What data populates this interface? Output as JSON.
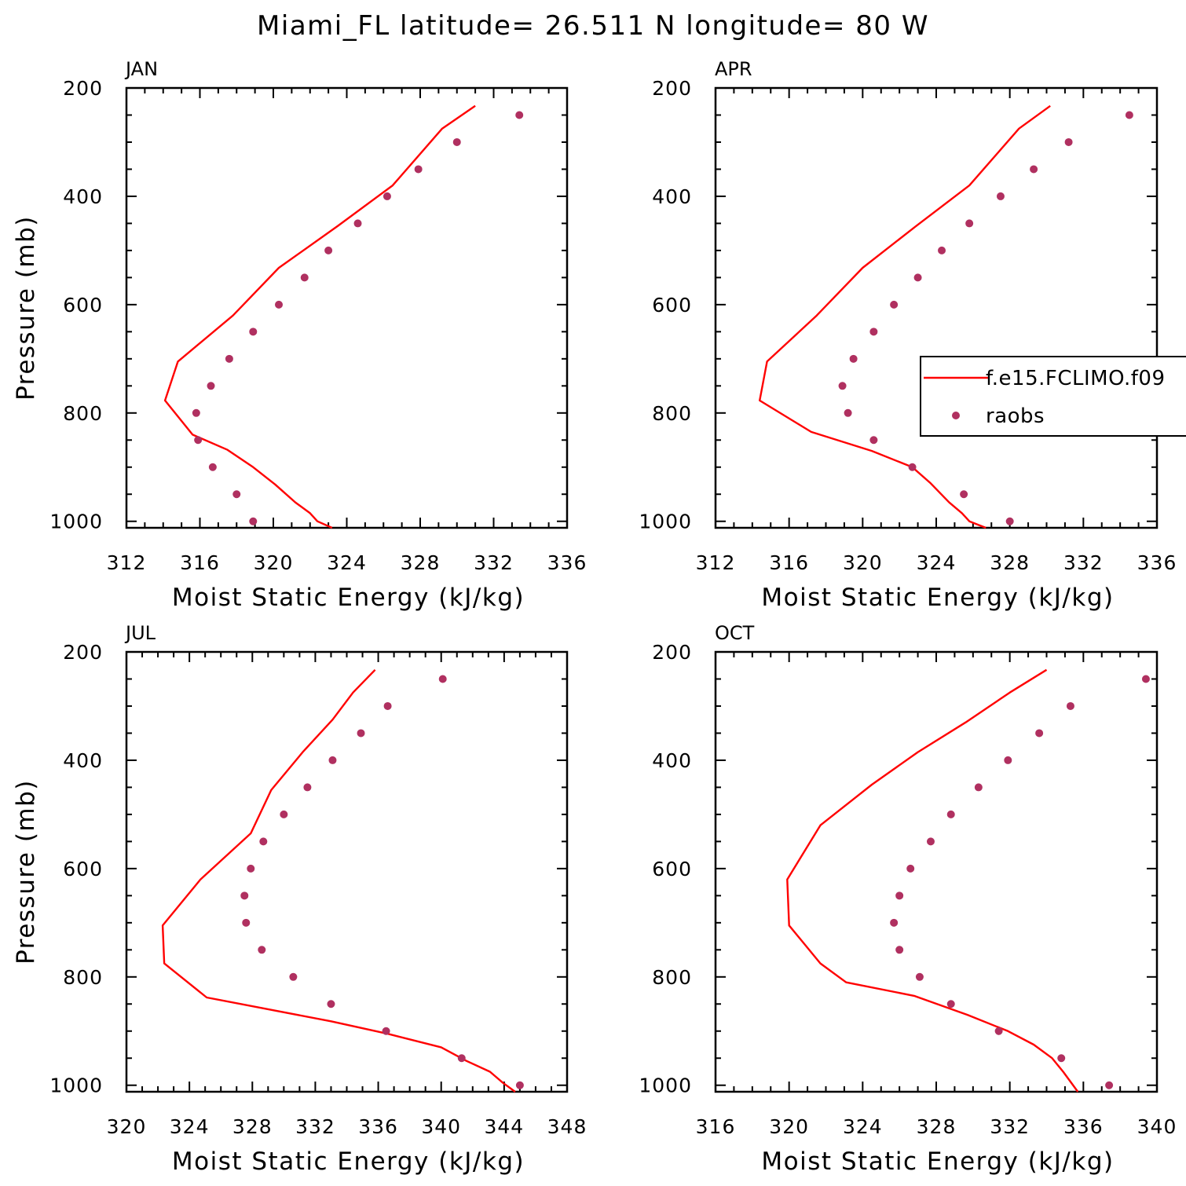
{
  "figure": {
    "title": "Miami_FL  latitude= 26.511 N longitude= 80 W"
  },
  "colors": {
    "model": "#ff0000",
    "raobs": "#b03060",
    "axes": "#000000"
  },
  "legend": {
    "placement": "right, over APR panel",
    "entries": [
      {
        "label": "f.e15.FCLIMO.f09",
        "style": "line"
      },
      {
        "label": "raobs",
        "style": "marker"
      }
    ]
  },
  "chart_data": [
    {
      "type": "line",
      "panel_title": "JAN",
      "xlabel": "Moist Static Energy (kJ/kg)",
      "ylabel": "Pressure (mb)",
      "xlim": [
        312,
        336
      ],
      "ylim": [
        1012,
        200
      ],
      "y_inverted": true,
      "xticks": [
        312,
        316,
        320,
        324,
        328,
        332,
        336
      ],
      "yticks": [
        200,
        400,
        600,
        800,
        1000
      ],
      "grid": false,
      "series": [
        {
          "name": "f.e15.FCLIMO.f09",
          "style": "line",
          "x": [
            331.0,
            329.2,
            326.5,
            323.5,
            320.3,
            317.8,
            314.8,
            314.1,
            315.6,
            317.5,
            318.9,
            320.1,
            321.2,
            322.0,
            322.4,
            323.2
          ],
          "y": [
            233,
            275,
            380,
            455,
            532,
            620,
            705,
            777,
            840,
            868,
            900,
            932,
            965,
            985,
            1000,
            1012
          ]
        },
        {
          "name": "raobs",
          "style": "marker",
          "x": [
            333.4,
            330.0,
            327.9,
            326.2,
            324.6,
            323.0,
            321.7,
            320.3,
            318.9,
            317.6,
            316.6,
            315.8,
            315.9,
            316.7,
            318.0,
            318.9
          ],
          "y": [
            250,
            300,
            350,
            400,
            450,
            500,
            550,
            600,
            650,
            700,
            750,
            800,
            850,
            900,
            950,
            1000
          ]
        }
      ]
    },
    {
      "type": "line",
      "panel_title": "APR",
      "xlabel": "Moist Static Energy (kJ/kg)",
      "ylabel": "",
      "xlim": [
        312,
        336
      ],
      "ylim": [
        1012,
        200
      ],
      "y_inverted": true,
      "xticks": [
        312,
        316,
        320,
        324,
        328,
        332,
        336
      ],
      "yticks": [
        200,
        400,
        600,
        800,
        1000
      ],
      "grid": false,
      "series": [
        {
          "name": "f.e15.FCLIMO.f09",
          "style": "line",
          "x": [
            330.2,
            328.5,
            325.8,
            322.9,
            320.0,
            317.5,
            314.8,
            314.4,
            317.2,
            320.5,
            322.7,
            323.7,
            324.7,
            325.4,
            325.8,
            326.7
          ],
          "y": [
            233,
            275,
            380,
            455,
            532,
            620,
            705,
            777,
            835,
            870,
            900,
            930,
            965,
            985,
            1000,
            1012
          ]
        },
        {
          "name": "raobs",
          "style": "marker",
          "x": [
            334.5,
            331.2,
            329.3,
            327.5,
            325.8,
            324.3,
            323.0,
            321.7,
            320.6,
            319.5,
            318.9,
            319.2,
            320.6,
            322.7,
            325.5,
            328.0
          ],
          "y": [
            250,
            300,
            350,
            400,
            450,
            500,
            550,
            600,
            650,
            700,
            750,
            800,
            850,
            900,
            950,
            1000
          ]
        }
      ]
    },
    {
      "type": "line",
      "panel_title": "JUL",
      "xlabel": "Moist Static Energy (kJ/kg)",
      "ylabel": "Pressure (mb)",
      "xlim": [
        320,
        348
      ],
      "ylim": [
        1012,
        200
      ],
      "y_inverted": true,
      "xticks": [
        320,
        324,
        328,
        332,
        336,
        340,
        344,
        348
      ],
      "yticks": [
        200,
        400,
        600,
        800,
        1000
      ],
      "grid": false,
      "series": [
        {
          "name": "f.e15.FCLIMO.f09",
          "style": "line",
          "x": [
            335.8,
            334.4,
            333.1,
            331.2,
            329.2,
            327.9,
            324.7,
            322.3,
            322.4,
            325.1,
            333.0,
            336.6,
            340.0,
            341.6,
            343.1,
            343.9,
            344.7
          ],
          "y": [
            233,
            275,
            325,
            385,
            455,
            535,
            620,
            705,
            775,
            838,
            882,
            905,
            930,
            955,
            975,
            995,
            1012
          ]
        },
        {
          "name": "raobs",
          "style": "marker",
          "x": [
            340.1,
            336.6,
            334.9,
            333.1,
            331.5,
            330.0,
            328.7,
            327.9,
            327.5,
            327.6,
            328.6,
            330.6,
            333.0,
            336.5,
            341.3,
            345.0
          ],
          "y": [
            250,
            300,
            350,
            400,
            450,
            500,
            550,
            600,
            650,
            700,
            750,
            800,
            850,
            900,
            950,
            1000
          ]
        }
      ]
    },
    {
      "type": "line",
      "panel_title": "OCT",
      "xlabel": "Moist Static Energy (kJ/kg)",
      "ylabel": "",
      "xlim": [
        316,
        340
      ],
      "ylim": [
        1012,
        200
      ],
      "y_inverted": true,
      "xticks": [
        316,
        320,
        324,
        328,
        332,
        336,
        340
      ],
      "yticks": [
        200,
        400,
        600,
        800,
        1000
      ],
      "grid": false,
      "series": [
        {
          "name": "f.e15.FCLIMO.f09",
          "style": "line",
          "x": [
            334.0,
            332.0,
            329.6,
            327.0,
            324.5,
            321.7,
            319.9,
            320.0,
            321.7,
            323.1,
            326.8,
            329.7,
            331.9,
            333.3,
            334.3,
            334.9,
            335.7
          ],
          "y": [
            233,
            275,
            330,
            385,
            445,
            520,
            620,
            705,
            775,
            810,
            835,
            870,
            900,
            925,
            950,
            975,
            1012
          ]
        },
        {
          "name": "raobs",
          "style": "marker",
          "x": [
            339.4,
            335.3,
            333.6,
            331.9,
            330.3,
            328.8,
            327.7,
            326.6,
            326.0,
            325.7,
            326.0,
            327.1,
            328.8,
            331.4,
            334.8,
            337.4
          ],
          "y": [
            250,
            300,
            350,
            400,
            450,
            500,
            550,
            600,
            650,
            700,
            750,
            800,
            850,
            900,
            950,
            1000
          ]
        }
      ]
    }
  ]
}
